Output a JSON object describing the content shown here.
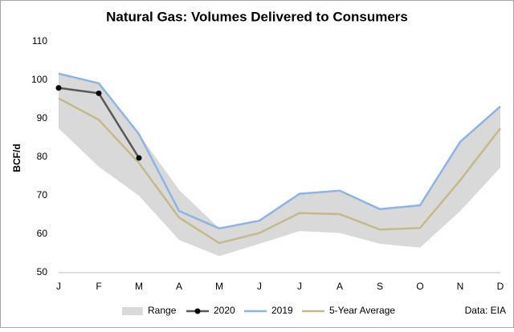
{
  "chart_data": {
    "type": "line",
    "title": "Natural Gas: Volumes Delivered to Consumers",
    "y_label": "BCF/d",
    "annotation": "Data: EIA",
    "categories": [
      "J",
      "F",
      "M",
      "A",
      "M",
      "J",
      "J",
      "A",
      "S",
      "O",
      "N",
      "D"
    ],
    "ylim": [
      50,
      110
    ],
    "yticks": [
      50,
      60,
      70,
      80,
      90,
      100,
      110
    ],
    "legend": "bottom",
    "band": {
      "name": "Range",
      "color": "#d9d9d9",
      "high": [
        101.5,
        99,
        86,
        71.5,
        61.5,
        63.5,
        70.5,
        71,
        66.5,
        67.5,
        84,
        93
      ],
      "low": [
        87.5,
        77.5,
        70,
        58.5,
        54.3,
        57.5,
        60.8,
        60.3,
        57.5,
        56.5,
        66,
        77.3
      ]
    },
    "series": [
      {
        "name": "2020",
        "color": "#595959",
        "marker_color": "#000000",
        "markers": true,
        "values": [
          98,
          96.6,
          79.8,
          null,
          null,
          null,
          null,
          null,
          null,
          null,
          null,
          null
        ]
      },
      {
        "name": "2019",
        "color": "#8eb4e3",
        "markers": false,
        "values": [
          101.7,
          99.2,
          86,
          66,
          61.5,
          63.5,
          70.5,
          71.3,
          66.5,
          67.5,
          84,
          93.2
        ]
      },
      {
        "name": "5-Year Average",
        "color": "#c4b98a",
        "markers": false,
        "values": [
          95.3,
          89.7,
          78.5,
          64.3,
          57.7,
          60.3,
          65.5,
          65.2,
          61.2,
          61.6,
          74,
          87.5
        ]
      }
    ]
  }
}
